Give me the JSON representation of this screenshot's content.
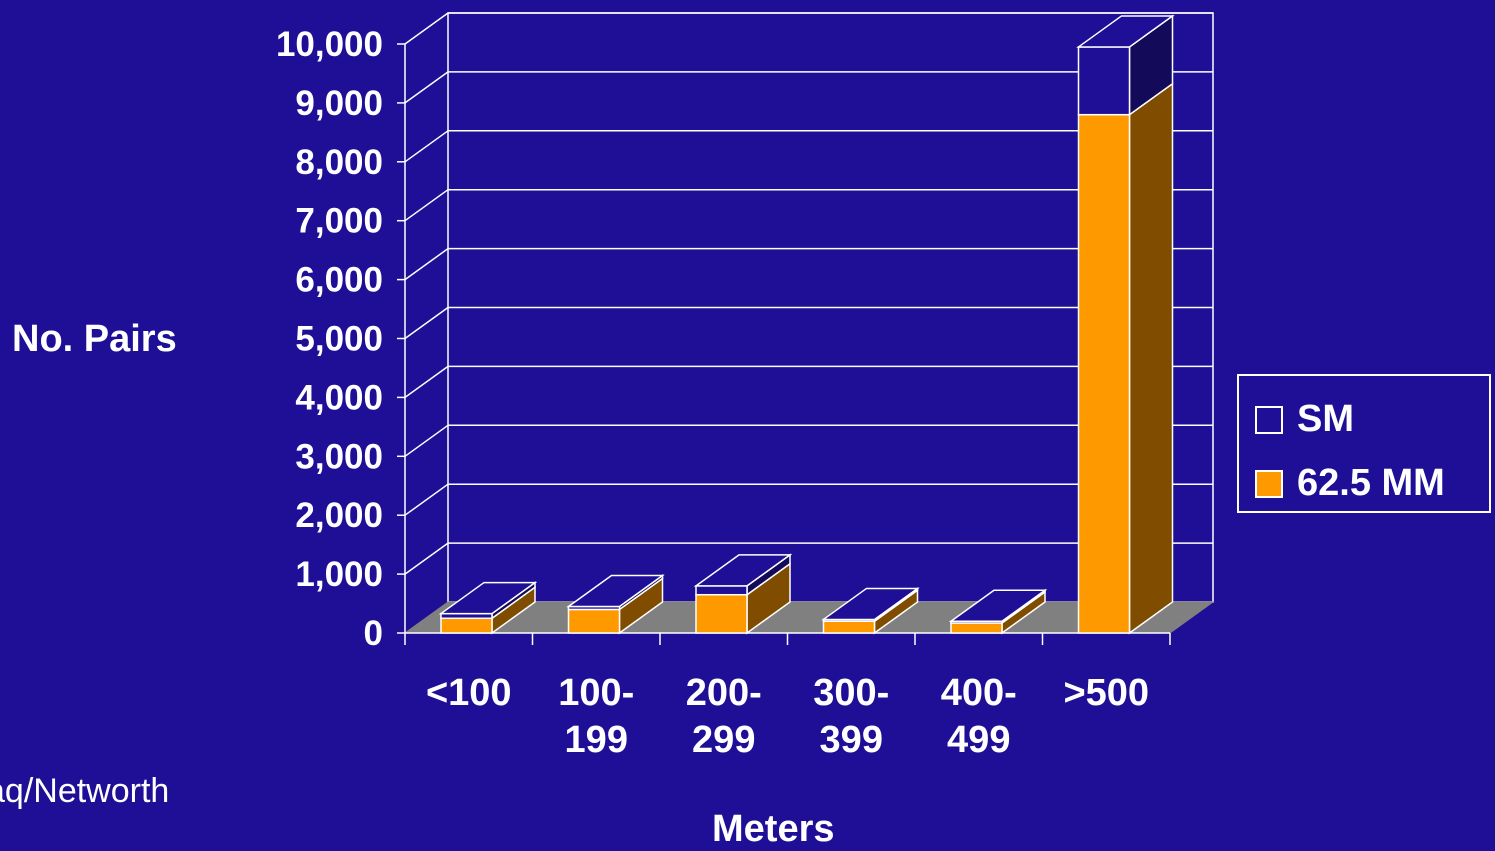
{
  "chart_data": {
    "type": "bar",
    "stacked": true,
    "three_d": true,
    "categories": [
      [
        "<100"
      ],
      [
        "100-",
        "199"
      ],
      [
        "200-",
        "299"
      ],
      [
        "300-",
        "399"
      ],
      [
        "400-",
        "499"
      ],
      [
        ">500"
      ]
    ],
    "series": [
      {
        "name": "62.5 MM",
        "color": "#ff9900",
        "side_color": "#7f4c00",
        "values": [
          250,
          400,
          650,
          200,
          170,
          8800
        ]
      },
      {
        "name": "SM",
        "color": "#1f0f97",
        "side_color": "#130a5a",
        "values": [
          80,
          50,
          150,
          30,
          30,
          1150
        ]
      }
    ],
    "yticks": [
      "0",
      "1,000",
      "2,000",
      "3,000",
      "4,000",
      "5,000",
      "6,000",
      "7,000",
      "8,000",
      "9,000",
      "10,000"
    ],
    "ylim": [
      0,
      10000
    ],
    "ylabel": "No. Pairs",
    "xlabel": "Meters",
    "grid": true,
    "legend_position": "right"
  },
  "source_text": "aq/Networth",
  "legend": [
    {
      "name": "SM",
      "color": "#1f0f97"
    },
    {
      "name": "62.5 MM",
      "color": "#ff9900"
    }
  ]
}
